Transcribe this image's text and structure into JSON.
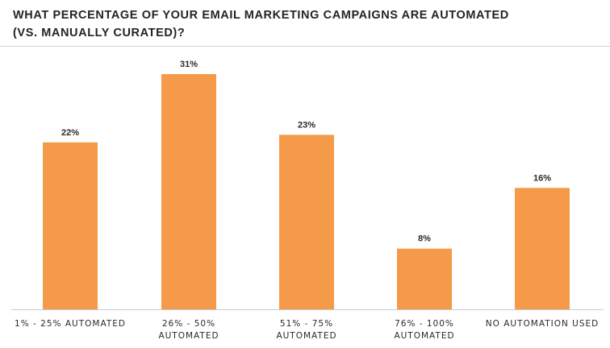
{
  "title_line1": "WHAT PERCENTAGE OF YOUR EMAIL MARKETING CAMPAIGNS ARE AUTOMATED",
  "title_line2": "(VS. MANUALLY CURATED)?",
  "colors": {
    "bar": "#f59a48",
    "axis": "#c9cdd0",
    "text": "#2a2a2a"
  },
  "chart_data": {
    "type": "bar",
    "title": "WHAT PERCENTAGE OF YOUR EMAIL MARKETING CAMPAIGNS ARE AUTOMATED (VS. MANUALLY CURATED)?",
    "categories": [
      [
        "1% - 25% AUTOMATED"
      ],
      [
        "26% - 50%",
        "AUTOMATED"
      ],
      [
        "51% - 75%",
        "AUTOMATED"
      ],
      [
        "76% - 100%",
        "AUTOMATED"
      ],
      [
        "NO AUTOMATION USED"
      ]
    ],
    "values": [
      22,
      31,
      23,
      8,
      16
    ],
    "value_labels": [
      "22%",
      "31%",
      "23%",
      "8%",
      "16%"
    ],
    "unit": "%",
    "ylim": [
      0,
      31
    ],
    "grid": false,
    "legend": "none"
  }
}
